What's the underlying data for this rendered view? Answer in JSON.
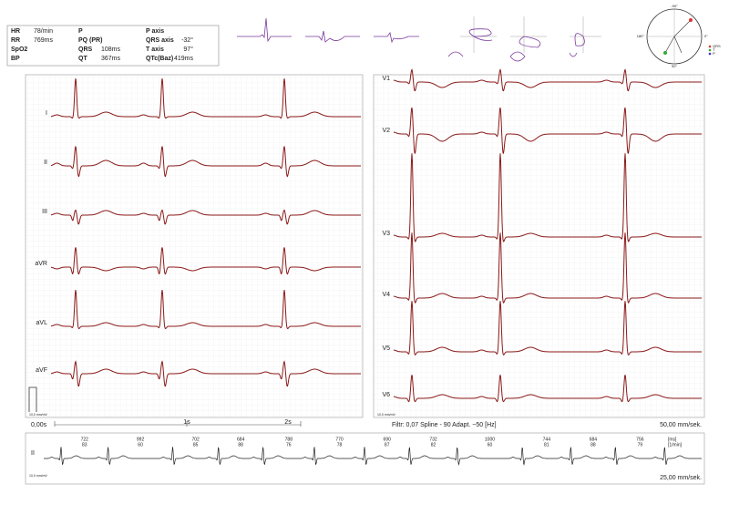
{
  "measurements": [
    {
      "label": "HR",
      "value": "78/min"
    },
    {
      "label": "RR",
      "value": "769ms"
    },
    {
      "label": "SpO2"
    },
    {
      "label": "BP"
    },
    {
      "label": "P"
    },
    {
      "label": "PQ (PR)"
    },
    {
      "label": "QRS",
      "value": "108ms"
    },
    {
      "label": "QT",
      "value": "367ms"
    },
    {
      "label": "P axis"
    },
    {
      "label": "QRS axis",
      "value": "-32°"
    },
    {
      "label": "T axis",
      "value": "97°"
    },
    {
      "label": "QTc(Baz)",
      "value": "419ms"
    }
  ],
  "axis_diagram": {
    "labels": [
      "-90°",
      "180°",
      "0°",
      "90°"
    ],
    "legend": [
      "QRS",
      "T",
      "P"
    ]
  },
  "limb_leads": [
    "I",
    "II",
    "III",
    "aVR",
    "aVL",
    "aVF"
  ],
  "chest_leads": [
    "V1",
    "V2",
    "V3",
    "V4",
    "V5",
    "V6"
  ],
  "left_calibration": "10,0 mm/mV",
  "right_calibration": "10,0 mm/mV",
  "time_labels": [
    "0,00s",
    "1s",
    "2s"
  ],
  "filter": "Filtr: 0,07 Spline - 90 Adapt. ~50 [Hz]",
  "speed": "50,00 mm/sek.",
  "rhythm": {
    "lead": "II",
    "units": [
      "[ms]",
      "[1/min]"
    ],
    "intervals": [
      {
        "ms": 722,
        "rate": 83
      },
      {
        "ms": 992,
        "rate": 60
      },
      {
        "ms": 702,
        "rate": 85
      },
      {
        "ms": 684,
        "rate": 88
      },
      {
        "ms": 788,
        "rate": 76
      },
      {
        "ms": 770,
        "rate": 78
      },
      {
        "ms": 690,
        "rate": 87
      },
      {
        "ms": 732,
        "rate": 82
      },
      {
        "ms": 1000,
        "rate": 60
      },
      {
        "ms": 744,
        "rate": 81
      },
      {
        "ms": 684,
        "rate": 88
      },
      {
        "ms": 756,
        "rate": 79
      }
    ],
    "calibration": "10,0 mm/mV",
    "speed": "25,00 mm/sek."
  }
}
